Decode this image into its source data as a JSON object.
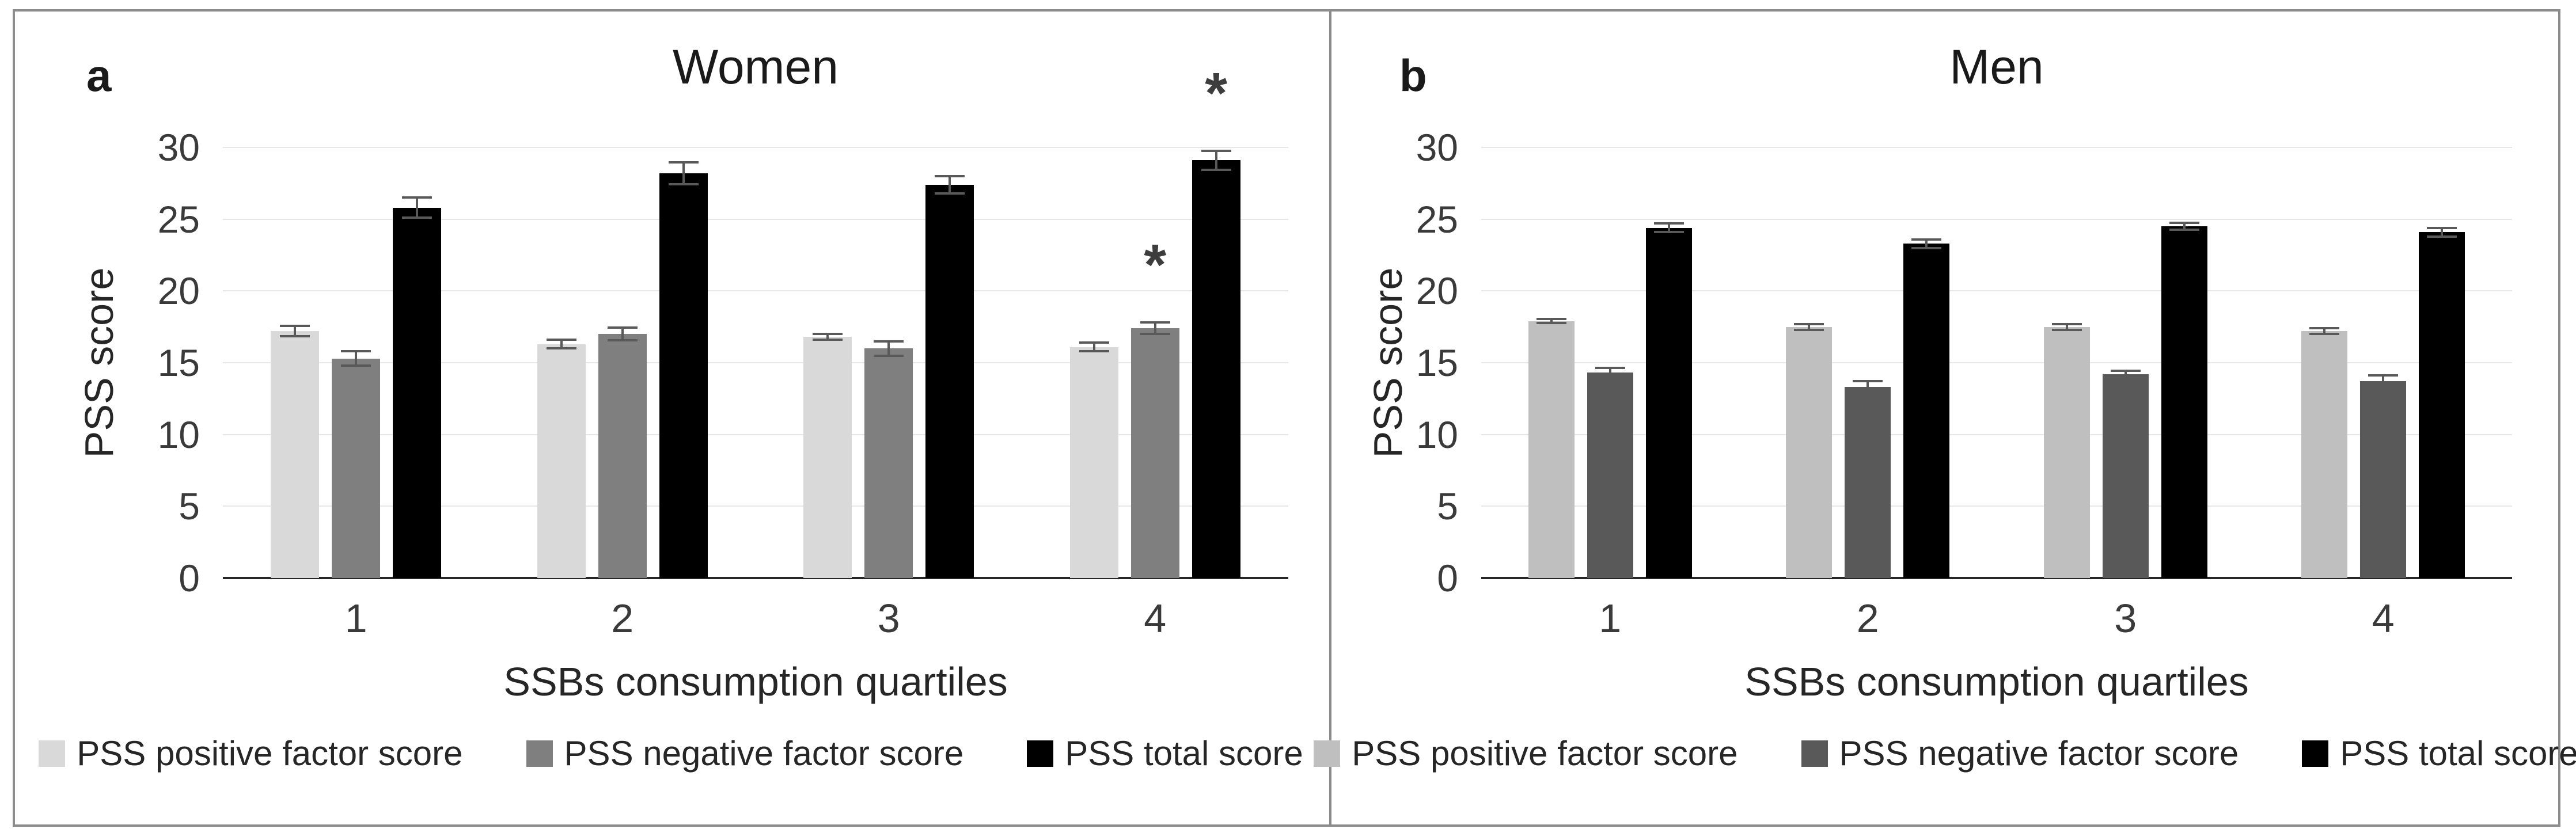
{
  "figure": {
    "background": "#ffffff",
    "border_color": "#8c8c8c",
    "gridline_color": "#e7e7e7",
    "axis_line_color": "#262626",
    "error_bar_color": "#595959",
    "text_color": "#262626",
    "significance_marker": "*"
  },
  "chart_data": [
    {
      "type": "bar",
      "panel_letter": "a",
      "title": "Women",
      "xlabel": "SSBs consumption quartiles",
      "ylabel": "PSS score",
      "categories": [
        "1",
        "2",
        "3",
        "4"
      ],
      "ylim": [
        0,
        30
      ],
      "yticks": [
        0,
        5,
        10,
        15,
        20,
        25,
        30
      ],
      "grid": true,
      "legend_position": "bottom",
      "series": [
        {
          "name": "PSS positive factor score",
          "color": "#d9d9d9",
          "values": [
            17.2,
            16.3,
            16.8,
            16.1
          ],
          "errors": [
            0.35,
            0.3,
            0.2,
            0.3
          ],
          "annotations": [
            "",
            "",
            "",
            ""
          ]
        },
        {
          "name": "PSS negative factor score",
          "color": "#7f7f7f",
          "values": [
            15.3,
            17.0,
            16.0,
            17.4
          ],
          "errors": [
            0.5,
            0.45,
            0.5,
            0.4
          ],
          "annotations": [
            "",
            "",
            "",
            "*"
          ]
        },
        {
          "name": "PSS total score",
          "color": "#000000",
          "values": [
            25.8,
            28.2,
            27.4,
            29.1
          ],
          "errors": [
            0.7,
            0.75,
            0.6,
            0.65
          ],
          "annotations": [
            "",
            "",
            "",
            "*"
          ]
        }
      ]
    },
    {
      "type": "bar",
      "panel_letter": "b",
      "title": "Men",
      "xlabel": "SSBs consumption quartiles",
      "ylabel": "PSS score",
      "categories": [
        "1",
        "2",
        "3",
        "4"
      ],
      "ylim": [
        0,
        30
      ],
      "yticks": [
        0,
        5,
        10,
        15,
        20,
        25,
        30
      ],
      "grid": true,
      "legend_position": "bottom",
      "series": [
        {
          "name": "PSS positive factor score",
          "color": "#bfbfbf",
          "values": [
            17.9,
            17.5,
            17.5,
            17.2
          ],
          "errors": [
            0.15,
            0.2,
            0.2,
            0.2
          ],
          "annotations": [
            "",
            "",
            "",
            ""
          ]
        },
        {
          "name": "PSS negative factor score",
          "color": "#595959",
          "values": [
            14.3,
            13.3,
            14.2,
            13.7
          ],
          "errors": [
            0.35,
            0.4,
            0.25,
            0.4
          ],
          "annotations": [
            "",
            "",
            "",
            ""
          ]
        },
        {
          "name": "PSS total score",
          "color": "#000000",
          "values": [
            24.4,
            23.3,
            24.5,
            24.1
          ],
          "errors": [
            0.3,
            0.3,
            0.25,
            0.3
          ],
          "annotations": [
            "",
            "",
            "",
            ""
          ]
        }
      ]
    }
  ]
}
